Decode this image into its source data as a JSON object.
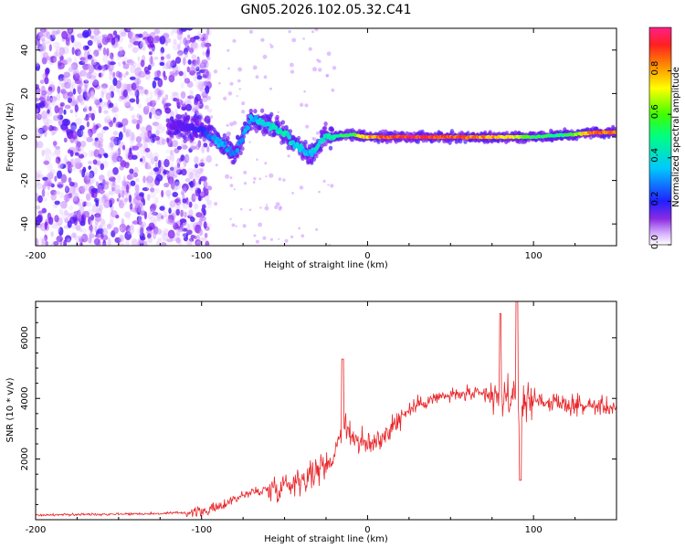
{
  "figure": {
    "title": "GN05.2026.102.05.32.C41"
  },
  "colors": {
    "snr_line": "#e8262a",
    "axes": "#000000",
    "spectrogram_low": "#6a00f0",
    "spectrogram_high": "#ff2a4a"
  },
  "chart_data": [
    {
      "type": "heatmap",
      "name": "spectrogram",
      "title": "",
      "xlabel": "Height of straight line (km)",
      "ylabel": "Frequency (Hz)",
      "xlim": [
        -200,
        150
      ],
      "ylim": [
        -50,
        50
      ],
      "xticks": [
        -200,
        -100,
        0,
        100
      ],
      "yticks": [
        -40,
        -20,
        0,
        20,
        40
      ],
      "xtick_labels": [
        "-200",
        "-100",
        "0",
        "100"
      ],
      "ytick_labels": [
        "-40",
        "-20",
        "0",
        "20",
        "40"
      ],
      "colorbar": {
        "label": "Normalized spectral amplitude",
        "range": [
          0,
          1
        ],
        "ticks": [
          0.0,
          0.2,
          0.4,
          0.6,
          0.8
        ],
        "tick_labels": [
          "0.0",
          "0.2",
          "0.4",
          "0.6",
          "0.8"
        ],
        "colormap": "rainbow (violet to red/pink)"
      },
      "description_points": [
        {
          "x": -120,
          "freq": 5,
          "amp": 0.15
        },
        {
          "x": -100,
          "freq": 4,
          "amp": 0.25
        },
        {
          "x": -90,
          "freq": -2,
          "amp": 0.4
        },
        {
          "x": -80,
          "freq": -8,
          "amp": 0.35
        },
        {
          "x": -70,
          "freq": 9,
          "amp": 0.4
        },
        {
          "x": -60,
          "freq": 6,
          "amp": 0.45
        },
        {
          "x": -50,
          "freq": 2,
          "amp": 0.5
        },
        {
          "x": -45,
          "freq": -3,
          "amp": 0.45
        },
        {
          "x": -35,
          "freq": -8,
          "amp": 0.4
        },
        {
          "x": -25,
          "freq": 0,
          "amp": 0.5
        },
        {
          "x": -10,
          "freq": 1,
          "amp": 0.6
        },
        {
          "x": 0,
          "freq": 0,
          "amp": 0.85
        },
        {
          "x": 20,
          "freq": 0,
          "amp": 1.0
        },
        {
          "x": 50,
          "freq": 0,
          "amp": 0.95
        },
        {
          "x": 80,
          "freq": 0,
          "amp": 0.85
        },
        {
          "x": 100,
          "freq": 0,
          "amp": 0.6
        },
        {
          "x": 120,
          "freq": 1,
          "amp": 0.55
        },
        {
          "x": 135,
          "freq": 2,
          "amp": 0.9
        },
        {
          "x": 150,
          "freq": 2,
          "amp": 0.95
        }
      ]
    },
    {
      "type": "line",
      "name": "snr",
      "title": "",
      "xlabel": "Height of straight line (km)",
      "ylabel": "SNR (10 * v/v)",
      "xlim": [
        -200,
        150
      ],
      "ylim": [
        0,
        7200
      ],
      "xticks": [
        -200,
        -100,
        0,
        100
      ],
      "yticks": [
        2000,
        4000,
        6000
      ],
      "xtick_labels": [
        "-200",
        "-100",
        "0",
        "100"
      ],
      "ytick_labels": [
        "2000",
        "4000",
        "6000"
      ],
      "series": [
        {
          "name": "SNR",
          "x": [
            -200,
            -175,
            -150,
            -125,
            -100,
            -90,
            -80,
            -70,
            -60,
            -50,
            -40,
            -30,
            -20,
            -15,
            -10,
            0,
            10,
            20,
            30,
            40,
            50,
            60,
            70,
            80,
            85,
            90,
            95,
            100,
            110,
            120,
            130,
            140,
            150
          ],
          "values": [
            150,
            170,
            190,
            200,
            260,
            400,
            700,
            900,
            1000,
            1150,
            1350,
            1600,
            2100,
            3300,
            2800,
            2400,
            2800,
            3400,
            3800,
            4000,
            4100,
            4150,
            4100,
            4000,
            4100,
            3800,
            3900,
            4000,
            3850,
            3800,
            3750,
            3750,
            3700
          ]
        }
      ],
      "annotations": [
        {
          "x": -15,
          "y": 5300,
          "note": "spike"
        },
        {
          "x": 80,
          "y": 6800,
          "note": "spike"
        },
        {
          "x": 90,
          "y": 7200,
          "note": "spike"
        },
        {
          "x": 92,
          "y": 1300,
          "note": "dip"
        }
      ]
    }
  ]
}
